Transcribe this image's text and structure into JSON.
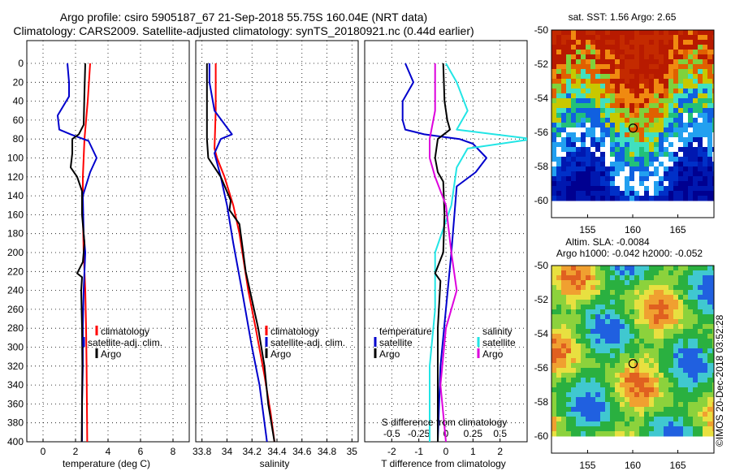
{
  "title": {
    "line1": "Argo profile: csiro 5905187_67 21-Sep-2018 55.75S 160.04E (NRT data)",
    "line2": "Climatology: CARS2009. Satellite-adjusted climatology: synTS_20180921.nc (0.44d earlier)"
  },
  "watermark": "©IMOS 20-Dec-2018 03:52:28",
  "colors": {
    "argo": "#000000",
    "climatology": "#ff0000",
    "satellite": "#0000cc",
    "t_satellite": "#0000cc",
    "s_satellite": "#22e5e5",
    "s_argo": "#dd00dd"
  },
  "chart_data": [
    {
      "id": "temperature",
      "type": "line",
      "xlabel": "temperature (deg C)",
      "xlim": [
        -1,
        9
      ],
      "ylim": [
        400,
        0
      ],
      "xticks": [
        "0",
        "2",
        "4",
        "6",
        "8"
      ],
      "yticks": [
        "0",
        "20",
        "40",
        "60",
        "80",
        "100",
        "120",
        "140",
        "160",
        "180",
        "200",
        "220",
        "240",
        "260",
        "280",
        "300",
        "320",
        "340",
        "360",
        "380",
        "400"
      ],
      "legend": [
        "climatology",
        "satellite-adj. clim.",
        "Argo"
      ],
      "series": [
        {
          "name": "climatology",
          "color": "#ff0000",
          "points": [
            [
              2.9,
              0
            ],
            [
              2.75,
              40
            ],
            [
              2.55,
              80
            ],
            [
              2.45,
              120
            ],
            [
              2.45,
              160
            ],
            [
              2.5,
              200
            ],
            [
              2.6,
              240
            ],
            [
              2.65,
              280
            ],
            [
              2.68,
              320
            ],
            [
              2.7,
              360
            ],
            [
              2.72,
              400
            ]
          ]
        },
        {
          "name": "satellite-adj. clim.",
          "color": "#0000cc",
          "points": [
            [
              1.5,
              0
            ],
            [
              1.6,
              20
            ],
            [
              1.6,
              35
            ],
            [
              0.9,
              55
            ],
            [
              1.0,
              70
            ],
            [
              1.7,
              75
            ],
            [
              2.8,
              82
            ],
            [
              3.3,
              100
            ],
            [
              2.9,
              115
            ],
            [
              2.45,
              140
            ],
            [
              2.5,
              180
            ],
            [
              2.6,
              200
            ],
            [
              2.5,
              240
            ],
            [
              2.45,
              280
            ],
            [
              2.45,
              320
            ],
            [
              2.4,
              360
            ],
            [
              2.4,
              400
            ]
          ]
        },
        {
          "name": "Argo",
          "color": "#000000",
          "points": [
            [
              2.6,
              0
            ],
            [
              2.55,
              30
            ],
            [
              2.5,
              65
            ],
            [
              2.2,
              75
            ],
            [
              1.8,
              80
            ],
            [
              1.8,
              95
            ],
            [
              1.7,
              110
            ],
            [
              2.1,
              120
            ],
            [
              2.4,
              135
            ],
            [
              2.4,
              160
            ],
            [
              2.55,
              190
            ],
            [
              2.45,
              210
            ],
            [
              2.1,
              222
            ],
            [
              2.4,
              226
            ],
            [
              2.35,
              240
            ],
            [
              2.4,
              280
            ],
            [
              2.42,
              320
            ],
            [
              2.4,
              360
            ],
            [
              2.38,
              400
            ]
          ]
        }
      ]
    },
    {
      "id": "salinity",
      "type": "line",
      "xlabel": "salinity",
      "xlim": [
        33.75,
        35.05
      ],
      "ylim": [
        400,
        0
      ],
      "xticks": [
        "33.8",
        "34",
        "34.2",
        "34.4",
        "34.6",
        "34.8",
        "35"
      ],
      "legend": [
        "climatology",
        "satellite-adj. clim.",
        "Argo"
      ],
      "series": [
        {
          "name": "climatology",
          "color": "#ff0000",
          "points": [
            [
              33.91,
              0
            ],
            [
              33.91,
              50
            ],
            [
              33.9,
              90
            ],
            [
              33.92,
              100
            ],
            [
              33.98,
              120
            ],
            [
              34.05,
              150
            ],
            [
              34.1,
              180
            ],
            [
              34.17,
              240
            ],
            [
              34.23,
              280
            ],
            [
              34.3,
              330
            ],
            [
              34.35,
              370
            ],
            [
              34.38,
              400
            ]
          ]
        },
        {
          "name": "satellite-adj. clim.",
          "color": "#0000cc",
          "points": [
            [
              33.86,
              0
            ],
            [
              33.86,
              20
            ],
            [
              33.9,
              50
            ],
            [
              34.04,
              75
            ],
            [
              33.95,
              80
            ],
            [
              33.9,
              95
            ],
            [
              33.95,
              120
            ],
            [
              34.0,
              150
            ],
            [
              34.05,
              190
            ],
            [
              34.12,
              240
            ],
            [
              34.2,
              300
            ],
            [
              34.26,
              340
            ],
            [
              34.32,
              400
            ]
          ]
        },
        {
          "name": "Argo",
          "color": "#000000",
          "points": [
            [
              33.84,
              0
            ],
            [
              33.84,
              40
            ],
            [
              33.84,
              80
            ],
            [
              33.85,
              100
            ],
            [
              33.95,
              120
            ],
            [
              34.03,
              145
            ],
            [
              34.02,
              155
            ],
            [
              34.1,
              170
            ],
            [
              34.12,
              190
            ],
            [
              34.15,
              220
            ],
            [
              34.2,
              250
            ],
            [
              34.25,
              280
            ],
            [
              34.3,
              320
            ],
            [
              34.33,
              360
            ],
            [
              34.38,
              400
            ]
          ]
        }
      ]
    },
    {
      "id": "difference",
      "type": "line",
      "xlabel": "T difference from climatology",
      "title2": "S difference from climatology",
      "xlim": [
        -3,
        3
      ],
      "ylim": [
        400,
        0
      ],
      "xticks": [
        "-2",
        "-1",
        "0",
        "1",
        "2"
      ],
      "s_xticks": [
        "-0.5",
        "-0.25",
        "0",
        "0.25",
        "0.5"
      ],
      "s_xlim": [
        -0.75,
        0.75
      ],
      "legend_t_title": "temperature",
      "legend_s_title": "salinity",
      "legend_t": [
        "satellite",
        "Argo"
      ],
      "legend_s": [
        "satellite",
        "Argo"
      ],
      "series": [
        {
          "name": "T satellite",
          "color": "#0000cc",
          "points": [
            [
              -1.5,
              0
            ],
            [
              -1.2,
              20
            ],
            [
              -1.6,
              40
            ],
            [
              -1.6,
              60
            ],
            [
              -1.5,
              70
            ],
            [
              -0.8,
              75
            ],
            [
              0.5,
              80
            ],
            [
              1.0,
              85
            ],
            [
              1.5,
              100
            ],
            [
              1.1,
              115
            ],
            [
              0.4,
              130
            ],
            [
              0.2,
              200
            ],
            [
              0.0,
              260
            ],
            [
              -0.2,
              320
            ],
            [
              -0.3,
              400
            ]
          ]
        },
        {
          "name": "S satellite",
          "color": "#22e5e5",
          "points": [
            [
              0.0,
              0
            ],
            [
              0.1,
              20
            ],
            [
              0.2,
              50
            ],
            [
              0.1,
              70
            ],
            [
              0.8,
              80
            ],
            [
              0.2,
              90
            ],
            [
              0.1,
              110
            ],
            [
              0.05,
              150
            ],
            [
              -0.1,
              200
            ],
            [
              -0.1,
              260
            ],
            [
              -0.15,
              320
            ],
            [
              -0.15,
              400
            ]
          ]
        },
        {
          "name": "T Argo",
          "color": "#000000",
          "points": [
            [
              -0.1,
              0
            ],
            [
              -0.05,
              40
            ],
            [
              0.05,
              60
            ],
            [
              0.15,
              70
            ],
            [
              -0.3,
              80
            ],
            [
              -0.4,
              100
            ],
            [
              -0.3,
              115
            ],
            [
              -0.1,
              125
            ],
            [
              -0.05,
              160
            ],
            [
              -0.1,
              200
            ],
            [
              -0.4,
              222
            ],
            [
              -0.2,
              230
            ],
            [
              -0.3,
              280
            ],
            [
              -0.3,
              340
            ],
            [
              -0.3,
              400
            ]
          ]
        },
        {
          "name": "S Argo",
          "color": "#dd00dd",
          "points": [
            [
              -0.1,
              0
            ],
            [
              -0.1,
              50
            ],
            [
              -0.15,
              80
            ],
            [
              -0.15,
              100
            ],
            [
              -0.1,
              120
            ],
            [
              0.0,
              150
            ],
            [
              0.05,
              200
            ],
            [
              0.1,
              240
            ],
            [
              0.0,
              280
            ],
            [
              -0.05,
              340
            ],
            [
              0.0,
              400
            ]
          ]
        }
      ]
    },
    {
      "id": "sst_map",
      "type": "heatmap",
      "title": "sat. SST: 1.56 Argo: 2.65",
      "xticks": [
        "155",
        "160",
        "165"
      ],
      "yticks": [
        "-50",
        "-52",
        "-54",
        "-56",
        "-58",
        "-60"
      ],
      "xlim": [
        151,
        169
      ],
      "ylim": [
        -61,
        -50
      ],
      "argo_location": [
        160.04,
        -55.75
      ],
      "data_bottom_lat": -60
    },
    {
      "id": "sla_map",
      "type": "heatmap",
      "title": "Altim. SLA: -0.0084",
      "subtitle": "Argo h1000: -0.042 h2000: -0.052",
      "xticks": [
        "155",
        "160",
        "165"
      ],
      "yticks": [
        "-50",
        "-52",
        "-54",
        "-56",
        "-58",
        "-60"
      ],
      "xlim": [
        151,
        169
      ],
      "ylim": [
        -61,
        -50
      ],
      "argo_location": [
        160.04,
        -55.75
      ],
      "data_bottom_lat": -60
    }
  ]
}
